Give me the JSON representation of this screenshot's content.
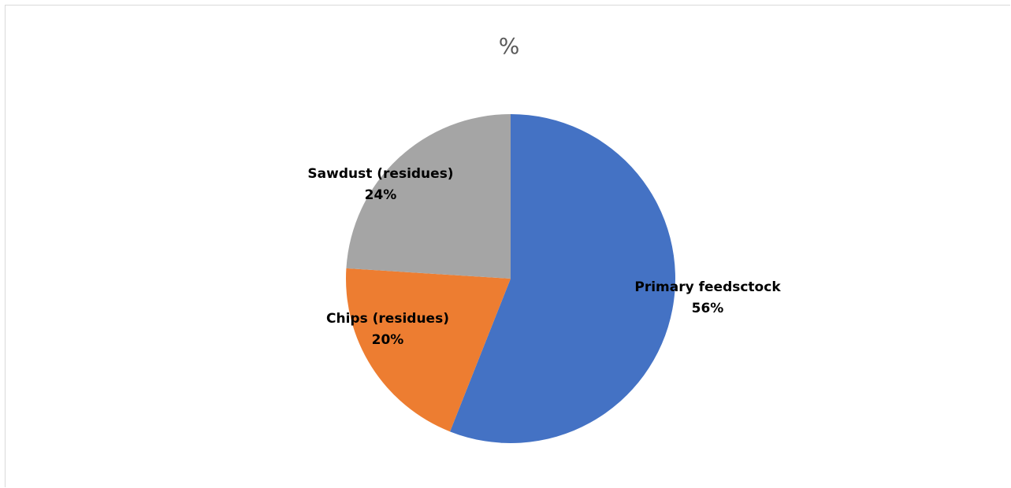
{
  "chart_data": {
    "type": "pie",
    "title": "%",
    "categories": [
      "Primary feedsctock",
      "Chips (residues)",
      "Sawdust (residues)"
    ],
    "values": [
      56,
      20,
      24
    ],
    "value_labels": [
      "56%",
      "20%",
      "24%"
    ],
    "colors": [
      "#4472C4",
      "#ED7D31",
      "#A5A5A5"
    ],
    "start_angle_deg": 0,
    "direction": "clockwise",
    "legend": "none"
  }
}
